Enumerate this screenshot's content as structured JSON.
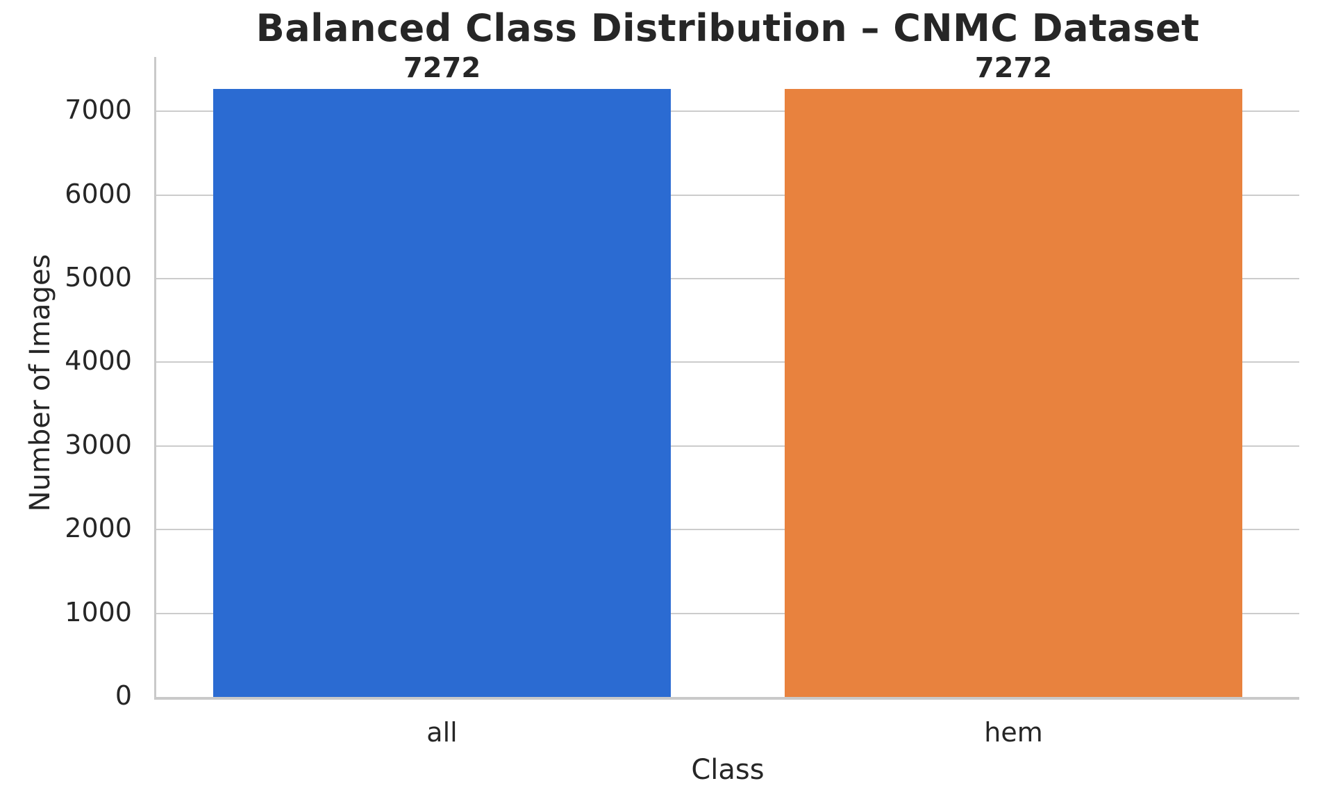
{
  "chart_data": {
    "type": "bar",
    "title": "Balanced Class Distribution – CNMC Dataset",
    "xlabel": "Class",
    "ylabel": "Number of Images",
    "categories": [
      "all",
      "hem"
    ],
    "values": [
      7272,
      7272
    ],
    "bar_labels": [
      "7272",
      "7272"
    ],
    "bar_colors": [
      "#2b6bd2",
      "#e8823e"
    ],
    "ylim": [
      0,
      7650
    ],
    "yticks": [
      0,
      1000,
      2000,
      3000,
      4000,
      5000,
      6000,
      7000
    ],
    "ytick_labels": [
      "0",
      "1000",
      "2000",
      "3000",
      "4000",
      "5000",
      "6000",
      "7000"
    ],
    "grid": "horizontal-only",
    "legend": "none",
    "bar_width_fraction": 0.8,
    "text_color": "#262626",
    "grid_color": "#cccccc",
    "spine_color": "#c9c9c9",
    "background_color": "#ffffff"
  }
}
